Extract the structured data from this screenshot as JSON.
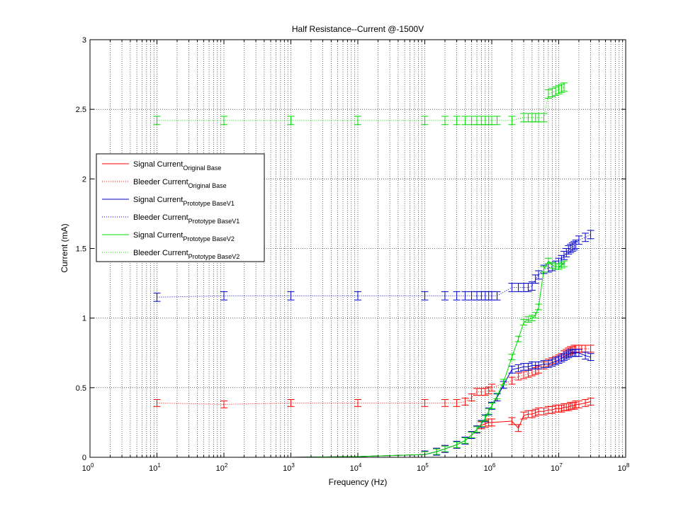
{
  "chart_data": {
    "type": "line",
    "title": "Half Resistance--Current @-1500V",
    "xlabel": "Frequency (Hz)",
    "ylabel": "Current (mA)",
    "x_scale": "log",
    "xlim": [
      1,
      100000000
    ],
    "ylim": [
      0,
      3
    ],
    "x_ticks": [
      {
        "base": "10",
        "exp": "0"
      },
      {
        "base": "10",
        "exp": "1"
      },
      {
        "base": "10",
        "exp": "2"
      },
      {
        "base": "10",
        "exp": "3"
      },
      {
        "base": "10",
        "exp": "4"
      },
      {
        "base": "10",
        "exp": "5"
      },
      {
        "base": "10",
        "exp": "6"
      },
      {
        "base": "10",
        "exp": "7"
      },
      {
        "base": "10",
        "exp": "8"
      }
    ],
    "y_ticks": [
      "0",
      "0.5",
      "1",
      "1.5",
      "2",
      "2.5",
      "3"
    ],
    "grid": true,
    "legend_position": "left",
    "legend": [
      {
        "main": "Signal Current",
        "sub": "Original Base",
        "color": "#ff0000",
        "dash": "solid"
      },
      {
        "main": "Bleeder Current",
        "sub": "Original Base",
        "color": "#ff0000",
        "dash": "dotted"
      },
      {
        "main": "Signal Current",
        "sub": "Prototype BaseV1",
        "color": "#0000cc",
        "dash": "solid"
      },
      {
        "main": "Bleeder Current",
        "sub": "Prototype BaseV1",
        "color": "#0000cc",
        "dash": "dotted"
      },
      {
        "main": "Signal Current",
        "sub": "Prototype BaseV2",
        "color": "#00dd00",
        "dash": "solid"
      },
      {
        "main": "Bleeder Current",
        "sub": "Prototype BaseV2",
        "color": "#00dd00",
        "dash": "dotted"
      }
    ],
    "series": [
      {
        "color": "#ff0000",
        "dash": "dotted",
        "err": 0.025,
        "x": [
          10,
          100,
          1000,
          10000,
          100000,
          200000,
          300000,
          400000,
          500000,
          600000,
          700000,
          800000,
          900000,
          1000000,
          2000000,
          2500000,
          3000000,
          3500000,
          4000000,
          4500000,
          5000000,
          6000000,
          7000000,
          8000000,
          9000000,
          10000000,
          11000000,
          12000000,
          13000000,
          14000000,
          15000000,
          16000000,
          17000000,
          18000000,
          20000000,
          22000000,
          25000000,
          30000000
        ],
        "y": [
          0.39,
          0.38,
          0.39,
          0.39,
          0.39,
          0.39,
          0.39,
          0.4,
          0.43,
          0.47,
          0.47,
          0.47,
          0.48,
          0.5,
          0.55,
          0.58,
          0.59,
          0.6,
          0.61,
          0.62,
          0.63,
          0.66,
          0.68,
          0.69,
          0.7,
          0.71,
          0.72,
          0.74,
          0.75,
          0.76,
          0.77,
          0.77,
          0.78,
          0.78,
          0.78,
          0.78,
          0.78,
          0.78
        ]
      },
      {
        "color": "#ff0000",
        "dash": "solid",
        "err": 0.025,
        "x": [
          10,
          100,
          1000,
          10000,
          100000,
          150000,
          200000,
          300000,
          400000,
          500000,
          600000,
          700000,
          800000,
          900000,
          1000000,
          2000000,
          2500000,
          3000000,
          3500000,
          4000000,
          4500000,
          5000000,
          6000000,
          7000000,
          8000000,
          9000000,
          10000000,
          11000000,
          12000000,
          13000000,
          14000000,
          15000000,
          16000000,
          17000000,
          18000000,
          20000000,
          25000000,
          30000000
        ],
        "y": [
          0,
          0,
          0,
          0.005,
          0.02,
          0.04,
          0.06,
          0.09,
          0.12,
          0.16,
          0.2,
          0.23,
          0.24,
          0.25,
          0.25,
          0.26,
          0.21,
          0.3,
          0.31,
          0.31,
          0.32,
          0.33,
          0.33,
          0.34,
          0.34,
          0.35,
          0.35,
          0.35,
          0.36,
          0.36,
          0.36,
          0.37,
          0.37,
          0.37,
          0.38,
          0.38,
          0.39,
          0.4
        ]
      },
      {
        "color": "#0000cc",
        "dash": "dotted",
        "err": 0.03,
        "x": [
          10,
          100,
          1000,
          10000,
          100000,
          200000,
          300000,
          400000,
          500000,
          600000,
          700000,
          800000,
          900000,
          1000000,
          1200000,
          2000000,
          2500000,
          3000000,
          3500000,
          4000000,
          4500000,
          5000000,
          6000000,
          7000000,
          8000000,
          9000000,
          10000000,
          11000000,
          12000000,
          13000000,
          14000000,
          15000000,
          16000000,
          17000000,
          18000000,
          20000000,
          25000000,
          30000000
        ],
        "y": [
          1.15,
          1.16,
          1.16,
          1.16,
          1.16,
          1.16,
          1.16,
          1.16,
          1.16,
          1.16,
          1.16,
          1.16,
          1.16,
          1.16,
          1.16,
          1.22,
          1.22,
          1.22,
          1.22,
          1.23,
          1.28,
          1.31,
          1.35,
          1.36,
          1.37,
          1.38,
          1.4,
          1.42,
          1.45,
          1.47,
          1.49,
          1.5,
          1.51,
          1.52,
          1.53,
          1.56,
          1.58,
          1.6
        ]
      },
      {
        "color": "#0000cc",
        "dash": "solid",
        "err": 0.025,
        "x": [
          10,
          100,
          1000,
          10000,
          100000,
          150000,
          200000,
          300000,
          400000,
          500000,
          600000,
          700000,
          800000,
          900000,
          1000000,
          1200000,
          1500000,
          2000000,
          2500000,
          3000000,
          3500000,
          4000000,
          4500000,
          5000000,
          6000000,
          7000000,
          8000000,
          9000000,
          10000000,
          11000000,
          12000000,
          13000000,
          14000000,
          15000000,
          16000000,
          17000000,
          18000000,
          20000000,
          25000000,
          30000000
        ],
        "y": [
          0,
          0,
          0,
          0.005,
          0.02,
          0.04,
          0.06,
          0.09,
          0.12,
          0.16,
          0.2,
          0.24,
          0.28,
          0.33,
          0.37,
          0.43,
          0.52,
          0.63,
          0.64,
          0.65,
          0.65,
          0.66,
          0.66,
          0.66,
          0.67,
          0.67,
          0.68,
          0.69,
          0.7,
          0.71,
          0.72,
          0.73,
          0.74,
          0.75,
          0.75,
          0.75,
          0.75,
          0.75,
          0.73,
          0.72
        ]
      },
      {
        "color": "#00dd00",
        "dash": "dotted",
        "err": 0.03,
        "x": [
          10,
          100,
          1000,
          10000,
          100000,
          200000,
          300000,
          400000,
          500000,
          600000,
          700000,
          800000,
          900000,
          1000000,
          1200000,
          2000000,
          3000000,
          3500000,
          4000000,
          4500000,
          5000000,
          6000000,
          7000000,
          8000000,
          9000000,
          10000000,
          11000000,
          12000000
        ],
        "y": [
          2.42,
          2.42,
          2.42,
          2.42,
          2.42,
          2.42,
          2.42,
          2.42,
          2.42,
          2.42,
          2.42,
          2.42,
          2.42,
          2.42,
          2.42,
          2.42,
          2.44,
          2.44,
          2.44,
          2.44,
          2.44,
          2.44,
          2.61,
          2.62,
          2.63,
          2.64,
          2.65,
          2.66
        ]
      },
      {
        "color": "#00dd00",
        "dash": "solid",
        "err": 0.02,
        "x": [
          10,
          100,
          1000,
          10000,
          100000,
          150000,
          200000,
          300000,
          400000,
          500000,
          600000,
          700000,
          800000,
          900000,
          1000000,
          1200000,
          1500000,
          2000000,
          2500000,
          3000000,
          3500000,
          4000000,
          4500000,
          5000000,
          6000000,
          7000000,
          8000000,
          9000000,
          10000000,
          11000000,
          12000000
        ],
        "y": [
          0,
          0,
          0,
          0.005,
          0.02,
          0.04,
          0.06,
          0.09,
          0.12,
          0.16,
          0.2,
          0.24,
          0.28,
          0.33,
          0.37,
          0.44,
          0.54,
          0.72,
          0.85,
          0.97,
          0.99,
          1.0,
          1.02,
          1.08,
          1.35,
          1.41,
          1.38,
          1.37,
          1.37,
          1.38,
          1.39
        ]
      }
    ]
  }
}
